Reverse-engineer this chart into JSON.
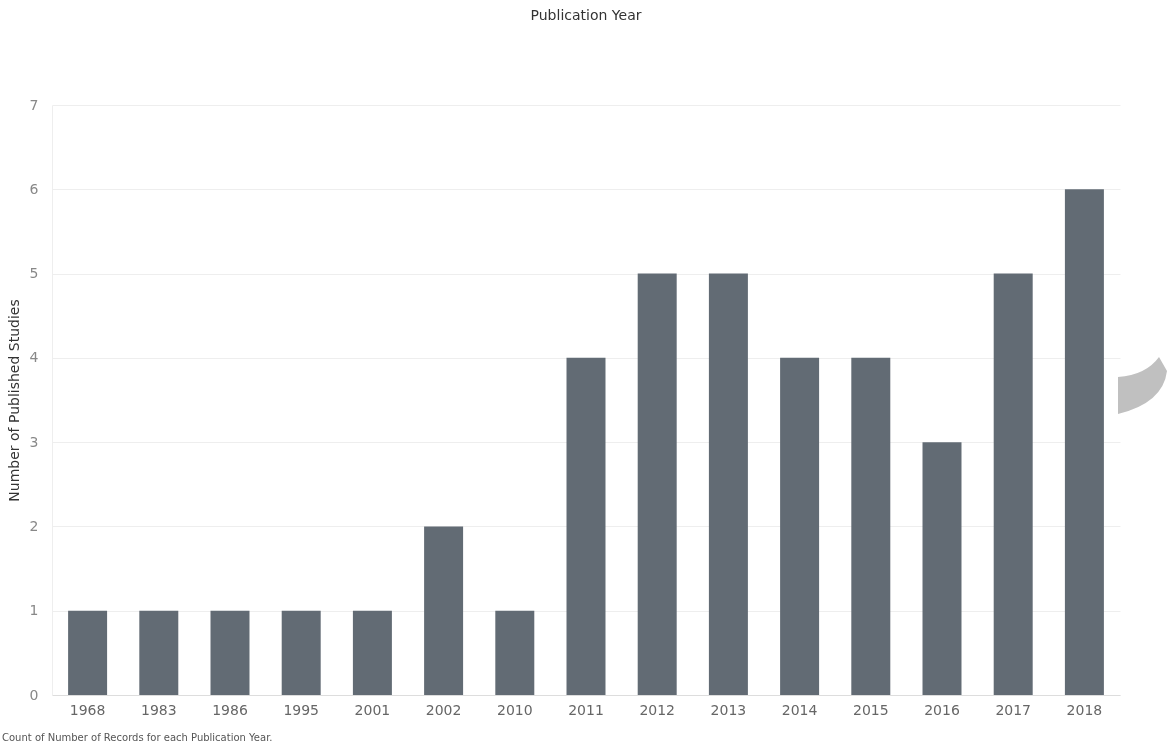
{
  "chart_data": {
    "type": "bar",
    "title": "Publication Year",
    "ylabel": "Number of Published Studies",
    "categories": [
      "1968",
      "1983",
      "1986",
      "1995",
      "2001",
      "2002",
      "2010",
      "2011",
      "2012",
      "2013",
      "2014",
      "2015",
      "2016",
      "2017",
      "2018"
    ],
    "values": [
      1,
      1,
      1,
      1,
      1,
      2,
      1,
      4,
      5,
      5,
      4,
      4,
      3,
      5,
      6
    ],
    "color": "#626b74",
    "ylim": [
      0,
      7
    ],
    "yticks": [
      0,
      1,
      2,
      3,
      4,
      5,
      6,
      7
    ],
    "grid": "y",
    "annotations": [
      "Count of Number of Records for each Publication Year."
    ]
  }
}
